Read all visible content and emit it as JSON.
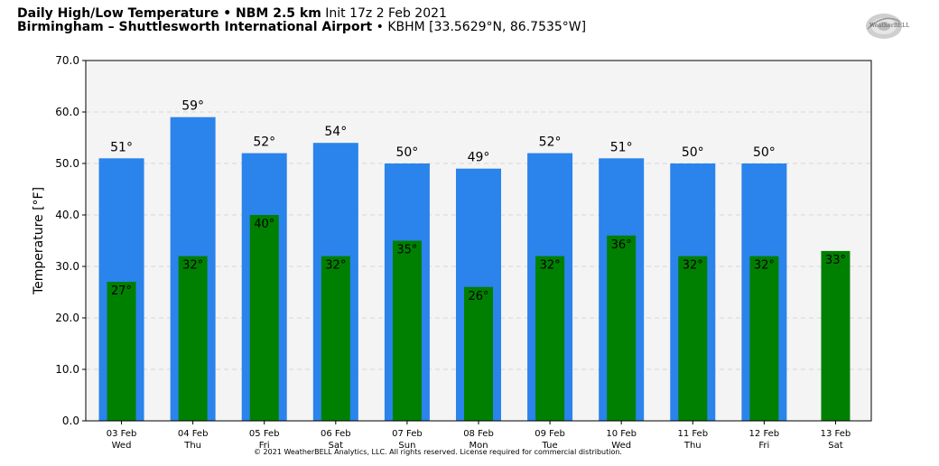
{
  "header": {
    "title_bold": "Daily High/Low Temperature • NBM 2.5 km",
    "init": "Init 17z 2 Feb 2021",
    "station_bold": "Birmingham – Shuttlesworth International Airport",
    "station_info": "• KBHM [33.5629°N, 86.7535°W]"
  },
  "logo": {
    "text": "WeatherBELL"
  },
  "copyright": "© 2021 WeatherBELL Analytics, LLC. All rights reserved. License required for commercial distribution.",
  "chart_data": {
    "type": "bar",
    "ylabel": "Temperature [°F]",
    "xlabel": "",
    "ylim": [
      0,
      70
    ],
    "yticks": [
      "0.0",
      "10.0",
      "20.0",
      "30.0",
      "40.0",
      "50.0",
      "60.0",
      "70.0"
    ],
    "grid": true,
    "categories": [
      {
        "date": "03 Feb",
        "day": "Wed"
      },
      {
        "date": "04 Feb",
        "day": "Thu"
      },
      {
        "date": "05 Feb",
        "day": "Fri"
      },
      {
        "date": "06 Feb",
        "day": "Sat"
      },
      {
        "date": "07 Feb",
        "day": "Sun"
      },
      {
        "date": "08 Feb",
        "day": "Mon"
      },
      {
        "date": "09 Feb",
        "day": "Tue"
      },
      {
        "date": "10 Feb",
        "day": "Wed"
      },
      {
        "date": "11 Feb",
        "day": "Thu"
      },
      {
        "date": "12 Feb",
        "day": "Fri"
      },
      {
        "date": "13 Feb",
        "day": "Sat"
      }
    ],
    "series": [
      {
        "role": "high",
        "color": "#2b83ec",
        "values": [
          51,
          59,
          52,
          54,
          50,
          49,
          52,
          51,
          50,
          50,
          null
        ],
        "labels": [
          "51°",
          "59°",
          "52°",
          "54°",
          "50°",
          "49°",
          "52°",
          "51°",
          "50°",
          "50°",
          ""
        ]
      },
      {
        "role": "low",
        "color": "#008000",
        "values": [
          27,
          32,
          40,
          32,
          35,
          26,
          32,
          36,
          32,
          32,
          33
        ],
        "labels": [
          "27°",
          "32°",
          "40°",
          "32°",
          "35°",
          "26°",
          "32°",
          "36°",
          "32°",
          "32°",
          "33°"
        ]
      }
    ],
    "plot_background": "#f4f4f4"
  }
}
